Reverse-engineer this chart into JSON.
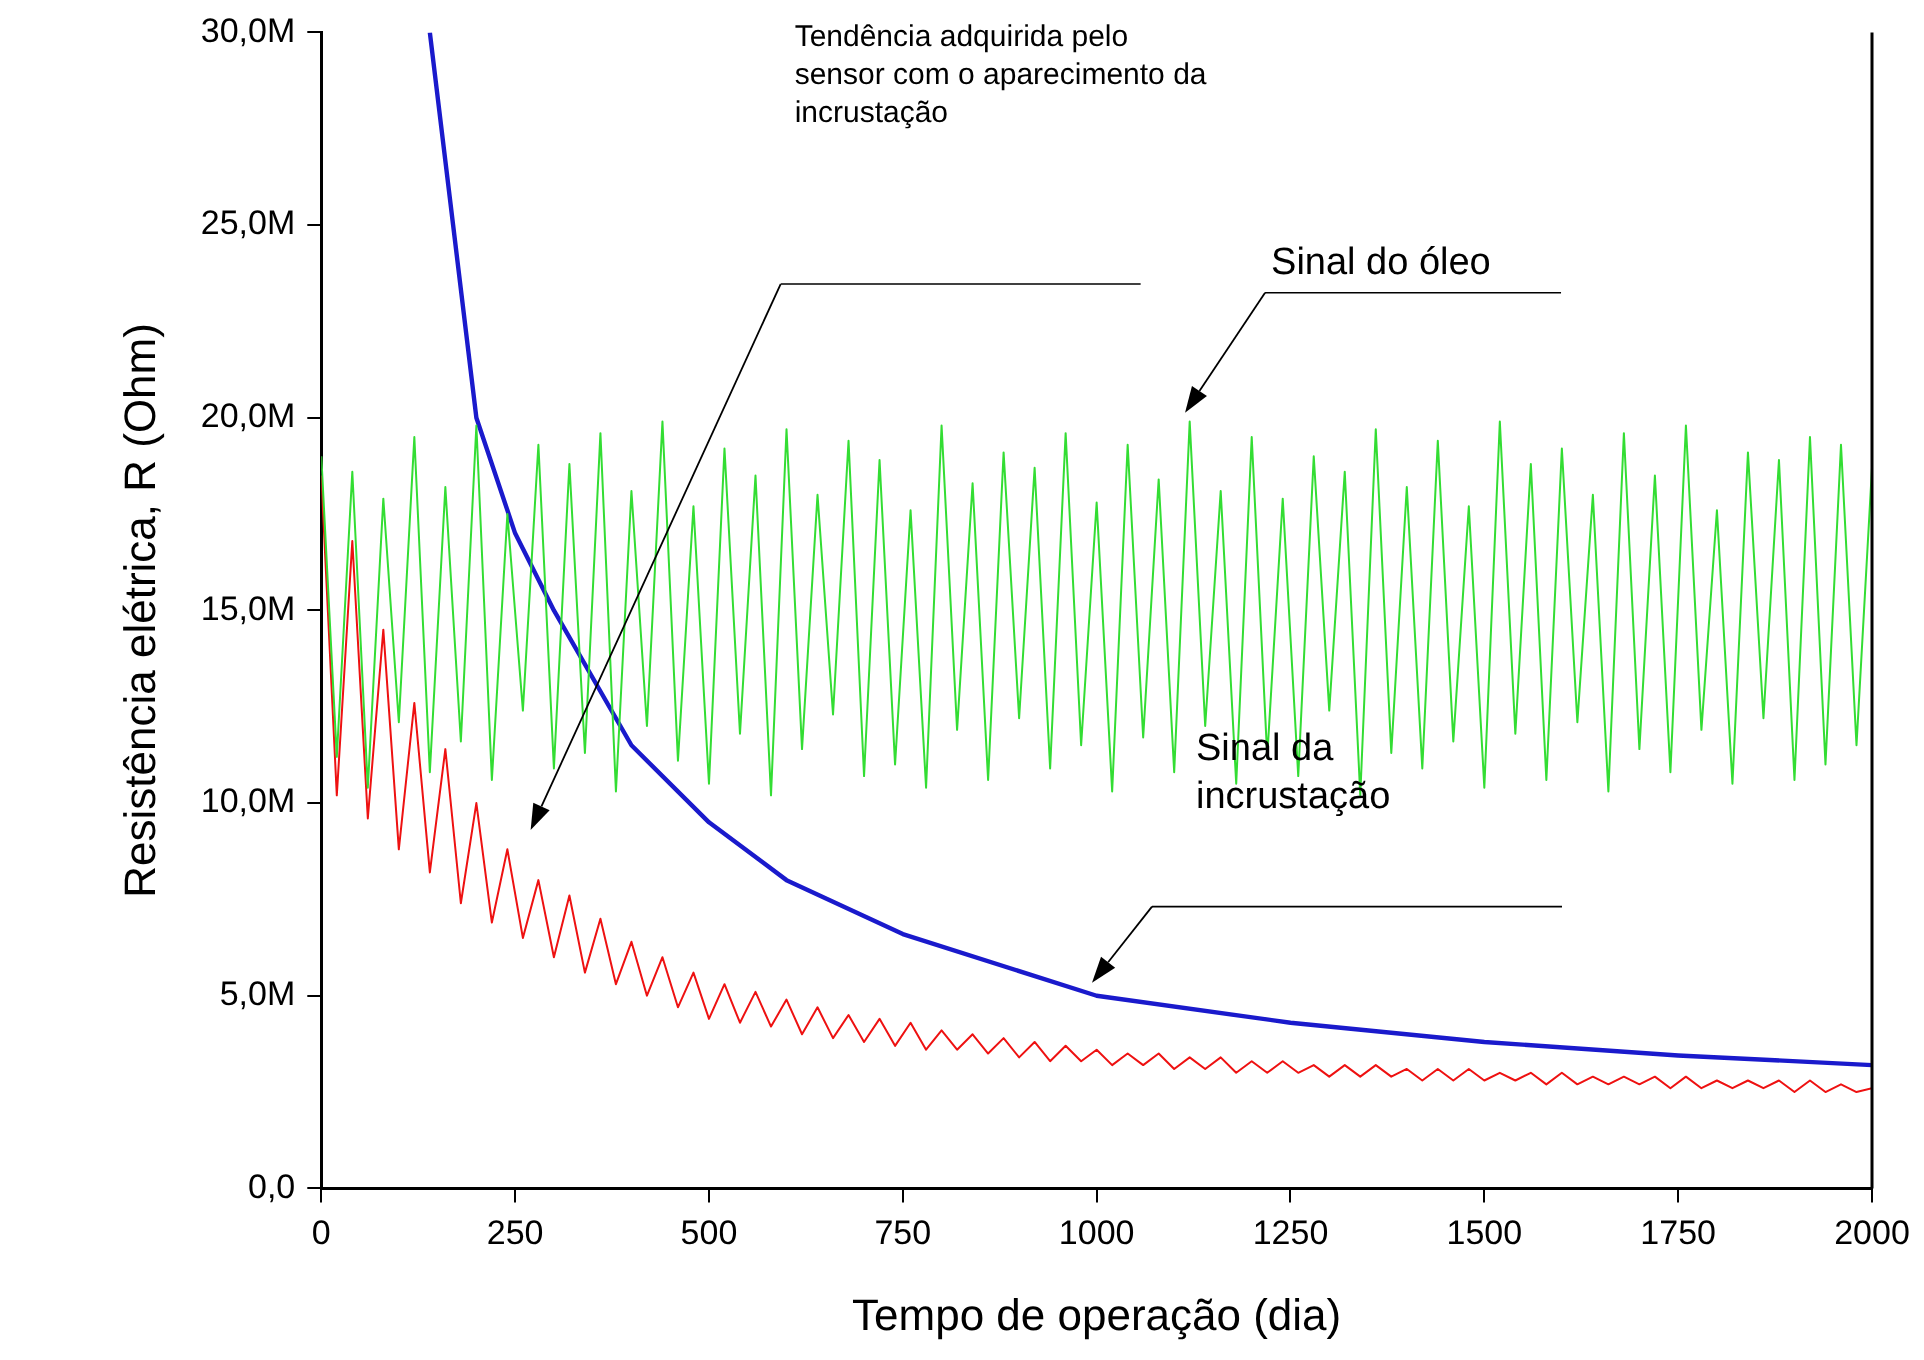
{
  "chart_data": {
    "type": "line",
    "xlabel": "Tempo de operação (dia)",
    "ylabel": "Resistência elétrica, R (Ohm)",
    "x": [
      0,
      20,
      40,
      60,
      80,
      100,
      120,
      140,
      160,
      180,
      200,
      220,
      240,
      260,
      280,
      300,
      320,
      340,
      360,
      380,
      400,
      420,
      440,
      460,
      480,
      500,
      520,
      540,
      560,
      580,
      600,
      620,
      640,
      660,
      680,
      700,
      720,
      740,
      760,
      780,
      800,
      820,
      840,
      860,
      880,
      900,
      920,
      940,
      960,
      980,
      1000,
      1020,
      1040,
      1060,
      1080,
      1100,
      1120,
      1140,
      1160,
      1180,
      1200,
      1220,
      1240,
      1260,
      1280,
      1300,
      1320,
      1340,
      1360,
      1380,
      1400,
      1420,
      1440,
      1460,
      1480,
      1500,
      1520,
      1540,
      1560,
      1580,
      1600,
      1620,
      1640,
      1660,
      1680,
      1700,
      1720,
      1740,
      1760,
      1780,
      1800,
      1820,
      1840,
      1860,
      1880,
      1900,
      1920,
      1940,
      1960,
      1980,
      2000
    ],
    "series": [
      {
        "color": "#33dd33",
        "values": [
          19.0,
          11.2,
          18.6,
          10.4,
          17.9,
          12.1,
          19.5,
          10.8,
          18.2,
          11.6,
          19.8,
          10.6,
          17.5,
          12.4,
          19.3,
          10.9,
          18.8,
          11.3,
          19.6,
          10.3,
          18.1,
          12.0,
          19.9,
          11.1,
          17.7,
          10.5,
          19.2,
          11.8,
          18.5,
          10.2,
          19.7,
          11.4,
          18.0,
          12.3,
          19.4,
          10.7,
          18.9,
          11.0,
          17.6,
          10.4,
          19.8,
          11.9,
          18.3,
          10.6,
          19.1,
          12.2,
          18.7,
          10.9,
          19.6,
          11.5,
          17.8,
          10.3,
          19.3,
          11.7,
          18.4,
          10.8,
          19.9,
          12.0,
          18.1,
          10.5,
          19.5,
          11.2,
          17.9,
          10.7,
          19.0,
          12.4,
          18.6,
          10.2,
          19.7,
          11.3,
          18.2,
          10.9,
          19.4,
          11.6,
          17.7,
          10.4,
          19.9,
          11.8,
          18.8,
          10.6,
          19.2,
          12.1,
          18.0,
          10.3,
          19.6,
          11.4,
          18.5,
          10.8,
          19.8,
          11.9,
          17.6,
          10.5,
          19.1,
          12.2,
          18.9,
          10.6,
          19.5,
          11.0,
          19.3,
          11.5,
          18.7
        ]
      },
      {
        "color": "#ee1111",
        "values": [
          18.5,
          10.2,
          16.8,
          9.6,
          14.5,
          8.8,
          12.6,
          8.2,
          11.4,
          7.4,
          10.0,
          6.9,
          8.8,
          6.5,
          8.0,
          6.0,
          7.6,
          5.6,
          7.0,
          5.3,
          6.4,
          5.0,
          6.0,
          4.7,
          5.6,
          4.4,
          5.3,
          4.3,
          5.1,
          4.2,
          4.9,
          4.0,
          4.7,
          3.9,
          4.5,
          3.8,
          4.4,
          3.7,
          4.3,
          3.6,
          4.1,
          3.6,
          4.0,
          3.5,
          3.9,
          3.4,
          3.8,
          3.3,
          3.7,
          3.3,
          3.6,
          3.2,
          3.5,
          3.2,
          3.5,
          3.1,
          3.4,
          3.1,
          3.4,
          3.0,
          3.3,
          3.0,
          3.3,
          3.0,
          3.2,
          2.9,
          3.2,
          2.9,
          3.2,
          2.9,
          3.1,
          2.8,
          3.1,
          2.8,
          3.1,
          2.8,
          3.0,
          2.8,
          3.0,
          2.7,
          3.0,
          2.7,
          2.9,
          2.7,
          2.9,
          2.7,
          2.9,
          2.6,
          2.9,
          2.6,
          2.8,
          2.6,
          2.8,
          2.6,
          2.8,
          2.5,
          2.8,
          2.5,
          2.7,
          2.5,
          2.6
        ]
      },
      {
        "color": "#1a1acc",
        "x": [
          140,
          170,
          200,
          250,
          300,
          400,
          500,
          600,
          750,
          1000,
          1250,
          1500,
          1750,
          2000
        ],
        "values": [
          30,
          25,
          20,
          17,
          15,
          11.5,
          9.5,
          8,
          6.6,
          5.0,
          4.3,
          3.8,
          3.45,
          3.2
        ]
      }
    ],
    "xlim": [
      0,
      2000
    ],
    "xticks": [
      0,
      250,
      500,
      750,
      1000,
      1250,
      1500,
      1750,
      2000
    ],
    "ylim": [
      0,
      30
    ],
    "yticks": [
      {
        "value": 0,
        "label": "0,0"
      },
      {
        "value": 5,
        "label": "5,0M"
      },
      {
        "value": 10,
        "label": "10,0M"
      },
      {
        "value": 15,
        "label": "15,0M"
      },
      {
        "value": 20,
        "label": "20,0M"
      },
      {
        "value": 25,
        "label": "25,0M"
      },
      {
        "value": 30,
        "label": "30,0M"
      }
    ],
    "grid": false,
    "legend": false,
    "annotations": [
      "Tendência adquirida pelo sensor com o aparecimento da incrustação",
      "Sinal do óleo",
      "Sinal da incrustação"
    ]
  }
}
